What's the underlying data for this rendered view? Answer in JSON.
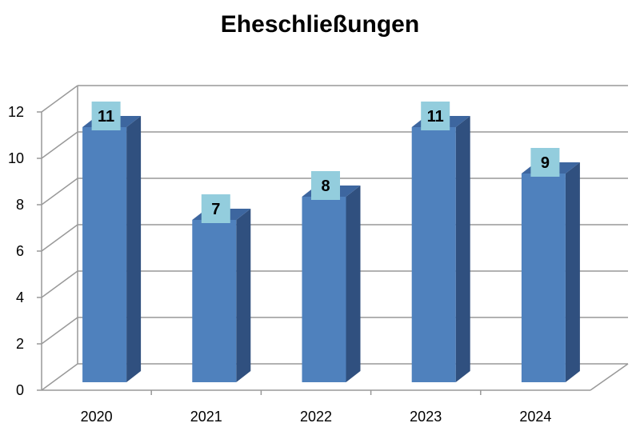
{
  "chart_data": {
    "type": "bar",
    "title": "Eheschließungen",
    "categories": [
      "2020",
      "2021",
      "2022",
      "2023",
      "2024"
    ],
    "values": [
      11,
      7,
      8,
      11,
      9
    ],
    "xlabel": "",
    "ylabel": "",
    "ylim": [
      0,
      12
    ],
    "yticks": [
      "0",
      "2",
      "4",
      "6",
      "8",
      "10",
      "12"
    ],
    "grid": true,
    "three_d": true,
    "data_labels": true,
    "colors": {
      "bar_front": "#4f81bd",
      "bar_side": "#30507f",
      "bar_top": "#3d669f",
      "label_bg": "#93cddd",
      "grid": "#999999"
    }
  }
}
